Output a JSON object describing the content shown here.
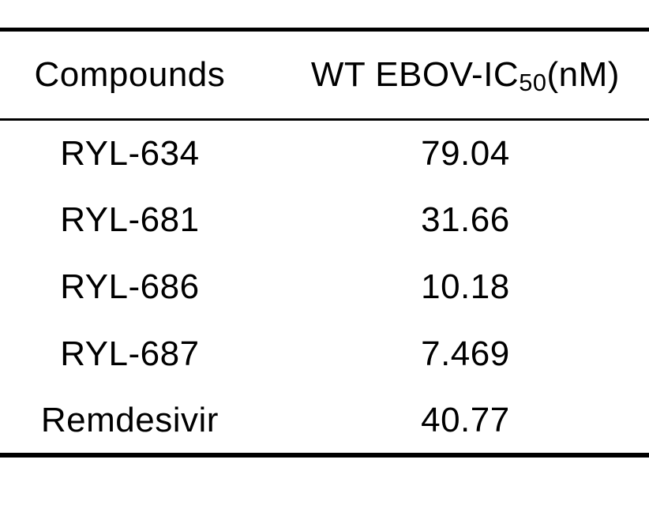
{
  "table": {
    "header": {
      "compounds_label": "Compounds",
      "ic50_prefix": "WT EBOV-IC",
      "ic50_subscript": "50",
      "ic50_suffix": "(nM)"
    },
    "rows": [
      {
        "compound": "RYL-634",
        "ic50": "79.04"
      },
      {
        "compound": "RYL-681",
        "ic50": "31.66"
      },
      {
        "compound": "RYL-686",
        "ic50": "10.18"
      },
      {
        "compound": "RYL-687",
        "ic50": "7.469"
      },
      {
        "compound": "Remdesivir",
        "ic50": "40.77"
      }
    ],
    "colors": {
      "text": "#000000",
      "rule": "#000000",
      "background": "#ffffff"
    }
  },
  "chart_data": {
    "type": "table",
    "title": "",
    "columns": [
      "Compounds",
      "WT EBOV-IC50(nM)"
    ],
    "rows": [
      [
        "RYL-634",
        "79.04"
      ],
      [
        "RYL-681",
        "31.66"
      ],
      [
        "RYL-686",
        "10.18"
      ],
      [
        "RYL-687",
        "7.469"
      ],
      [
        "Remdesivir",
        "40.77"
      ]
    ],
    "values_unit": "nM",
    "numeric_values": [
      79.04,
      31.66,
      10.18,
      7.469,
      40.77
    ]
  }
}
